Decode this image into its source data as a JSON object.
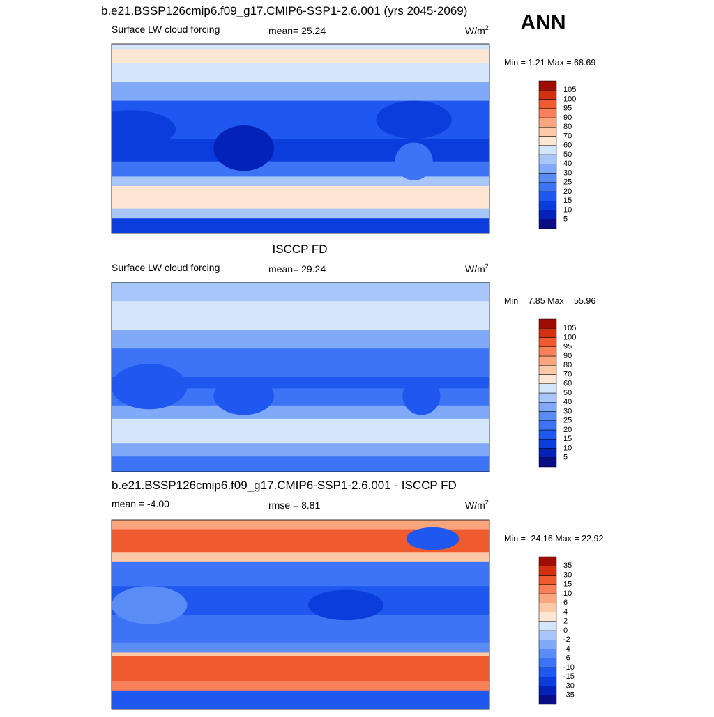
{
  "annotation": "ANN",
  "panels": [
    {
      "title": "b.e21.BSSP126cmip6.f09_g17.CMIP6-SSP1-2.6.001 (yrs 2045-2069)",
      "left": "Surface LW cloud forcing",
      "center": "mean=  25.24",
      "units": "W/m",
      "units_sup": "2",
      "minmax": "Min =   1.21 Max =  68.69",
      "colorbar": {
        "labels": [
          5,
          10,
          15,
          20,
          25,
          30,
          40,
          50,
          60,
          70,
          80,
          90,
          95,
          100,
          105
        ],
        "colors": [
          "#0c0c86",
          "#0322b8",
          "#0a3ddc",
          "#1f58ee",
          "#3c74f5",
          "#5a8cf5",
          "#80aaf7",
          "#a8c6f9",
          "#d4e6fb",
          "#fde7d4",
          "#fcc9a8",
          "#fba57f",
          "#f8805a",
          "#ef5a2e",
          "#d3300f",
          "#9f0c05"
        ]
      }
    },
    {
      "title": "ISCCP FD",
      "left": "Surface LW cloud forcing",
      "center": "mean=  29.24",
      "units": "W/m",
      "units_sup": "2",
      "minmax": "Min =   7.85 Max =  55.96",
      "colorbar": {
        "labels": [
          5,
          10,
          15,
          20,
          25,
          30,
          40,
          50,
          60,
          70,
          80,
          90,
          95,
          100,
          105
        ],
        "colors": [
          "#0c0c86",
          "#0322b8",
          "#0a3ddc",
          "#1f58ee",
          "#3c74f5",
          "#5a8cf5",
          "#80aaf7",
          "#a8c6f9",
          "#d4e6fb",
          "#fde7d4",
          "#fcc9a8",
          "#fba57f",
          "#f8805a",
          "#ef5a2e",
          "#d3300f",
          "#9f0c05"
        ]
      }
    },
    {
      "title": "b.e21.BSSP126cmip6.f09_g17.CMIP6-SSP1-2.6.001 - ISCCP FD",
      "left": "mean =  -4.00",
      "center": "rmse =   8.81",
      "units": "W/m",
      "units_sup": "2",
      "minmax": "Min = -24.16 Max =  22.92",
      "colorbar": {
        "labels": [
          -35,
          -30,
          -15,
          -10,
          -6,
          -4,
          -2,
          0,
          2,
          4,
          6,
          10,
          15,
          30,
          35
        ],
        "colors": [
          "#0c0c86",
          "#0322b8",
          "#0a3ddc",
          "#1f58ee",
          "#3c74f5",
          "#5a8cf5",
          "#80aaf7",
          "#a8c6f9",
          "#d4e6fb",
          "#fde7d4",
          "#fcc9a8",
          "#fba57f",
          "#f8805a",
          "#ef5a2e",
          "#d3300f",
          "#9f0c05"
        ]
      }
    }
  ]
}
